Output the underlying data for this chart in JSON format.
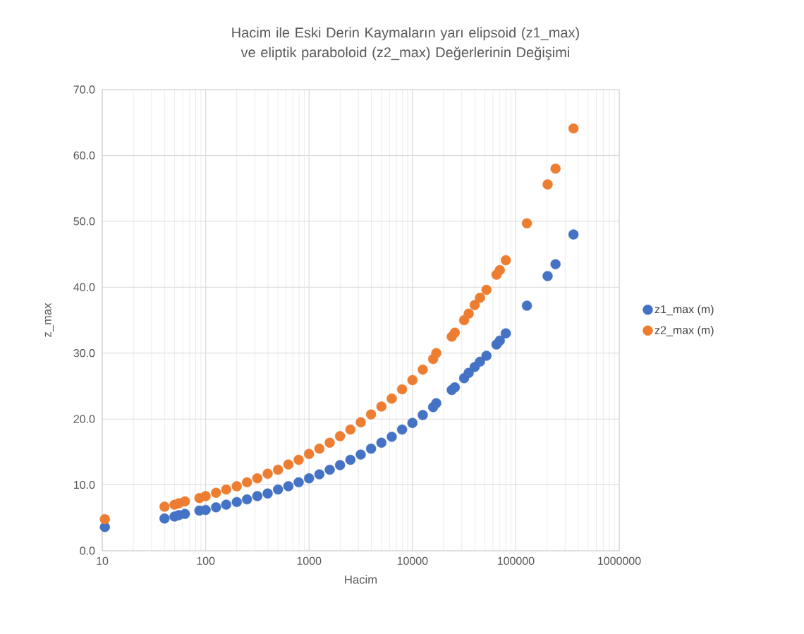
{
  "chart_data": {
    "type": "scatter",
    "title": "Hacim ile Eski Derin Kaymaların yarı elipsoid (z1_max) ve eliptik paraboloid (z2_max) Değerlerinin Değişimi",
    "xlabel": "Hacim",
    "ylabel": "z_max",
    "log": "x",
    "grid": true,
    "legend": "right",
    "marker": "circle",
    "xlim": [
      10,
      1000000
    ],
    "xticks": [
      10,
      100,
      1000,
      10000,
      100000,
      1000000
    ],
    "ylim": [
      0,
      70
    ],
    "yticks": [
      {
        "value": 0,
        "label": "0.0"
      },
      {
        "value": 10,
        "label": "10.0"
      },
      {
        "value": 20,
        "label": "20.0"
      },
      {
        "value": 30,
        "label": "30.0"
      },
      {
        "value": 40,
        "label": "40.0"
      },
      {
        "value": 50,
        "label": "50.0"
      },
      {
        "value": 60,
        "label": "60.0"
      },
      {
        "value": 70,
        "label": "70.0"
      }
    ],
    "series": [
      {
        "name": "z1_max (m)",
        "color": "#4472c4",
        "x": [
          10.6,
          40,
          50,
          55,
          63,
          87,
          100,
          126,
          158,
          200,
          251,
          316,
          398,
          501,
          631,
          794,
          1000,
          1259,
          1585,
          1995,
          2512,
          3162,
          3981,
          5012,
          6310,
          7943,
          10000,
          12589,
          15849,
          17000,
          24000,
          25700,
          31600,
          35000,
          40000,
          45000,
          52000,
          65000,
          70000,
          80000,
          128000,
          203000,
          242000,
          361000
        ],
        "values": [
          3.6,
          4.9,
          5.2,
          5.4,
          5.6,
          6.1,
          6.2,
          6.6,
          7.0,
          7.4,
          7.8,
          8.3,
          8.7,
          9.3,
          9.8,
          10.4,
          11.0,
          11.6,
          12.3,
          13.0,
          13.8,
          14.6,
          15.5,
          16.4,
          17.3,
          18.4,
          19.4,
          20.6,
          21.8,
          22.4,
          24.4,
          24.8,
          26.2,
          27.0,
          27.9,
          28.7,
          29.6,
          31.3,
          31.9,
          33.0,
          37.2,
          41.7,
          43.5,
          48.0
        ]
      },
      {
        "name": "z2_max (m)",
        "color": "#ed7d31",
        "x": [
          10.6,
          40,
          50,
          55,
          63,
          87,
          100,
          126,
          158,
          200,
          251,
          316,
          398,
          501,
          631,
          794,
          1000,
          1259,
          1585,
          1995,
          2512,
          3162,
          3981,
          5012,
          6310,
          7943,
          10000,
          12589,
          15849,
          17000,
          24000,
          25700,
          31600,
          35000,
          40000,
          45000,
          52000,
          65000,
          70000,
          80000,
          128000,
          203000,
          242000,
          361000
        ],
        "values": [
          4.8,
          6.7,
          7.0,
          7.2,
          7.5,
          8.0,
          8.3,
          8.8,
          9.3,
          9.8,
          10.4,
          11.0,
          11.7,
          12.3,
          13.1,
          13.8,
          14.7,
          15.5,
          16.4,
          17.4,
          18.4,
          19.5,
          20.7,
          21.9,
          23.1,
          24.5,
          25.9,
          27.5,
          29.1,
          30.0,
          32.5,
          33.1,
          35.0,
          36.0,
          37.3,
          38.4,
          39.6,
          41.9,
          42.6,
          44.1,
          49.7,
          55.6,
          58.0,
          64.1
        ]
      }
    ]
  }
}
